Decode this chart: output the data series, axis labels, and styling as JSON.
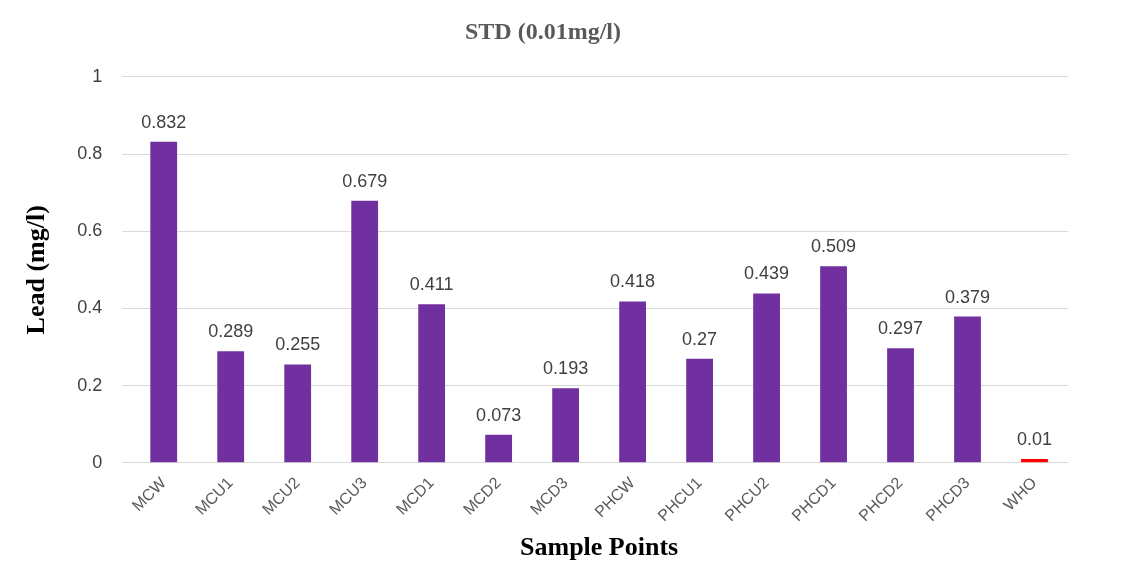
{
  "chart_data": {
    "type": "bar",
    "title": "STD (0.01mg/l)",
    "xlabel": "Sample Points",
    "ylabel": "Lead (mg/l)",
    "categories": [
      "MCW",
      "MCU1",
      "MCU2",
      "MCU3",
      "MCD1",
      "MCD2",
      "MCD3",
      "PHCW",
      "PHCU1",
      "PHCU2",
      "PHCD1",
      "PHCD2",
      "PHCD3",
      "WHO"
    ],
    "values": [
      0.832,
      0.289,
      0.255,
      0.679,
      0.411,
      0.073,
      0.193,
      0.418,
      0.27,
      0.439,
      0.509,
      0.297,
      0.379,
      0.01
    ],
    "colors": [
      "#7030a0",
      "#7030a0",
      "#7030a0",
      "#7030a0",
      "#7030a0",
      "#7030a0",
      "#7030a0",
      "#7030a0",
      "#7030a0",
      "#7030a0",
      "#7030a0",
      "#7030a0",
      "#7030a0",
      "#ff0000"
    ],
    "ylim": [
      0,
      1
    ],
    "yticks": [
      0,
      0.2,
      0.4,
      0.6,
      0.8,
      1
    ],
    "grid": "y",
    "data_labels": true,
    "legend": false
  }
}
